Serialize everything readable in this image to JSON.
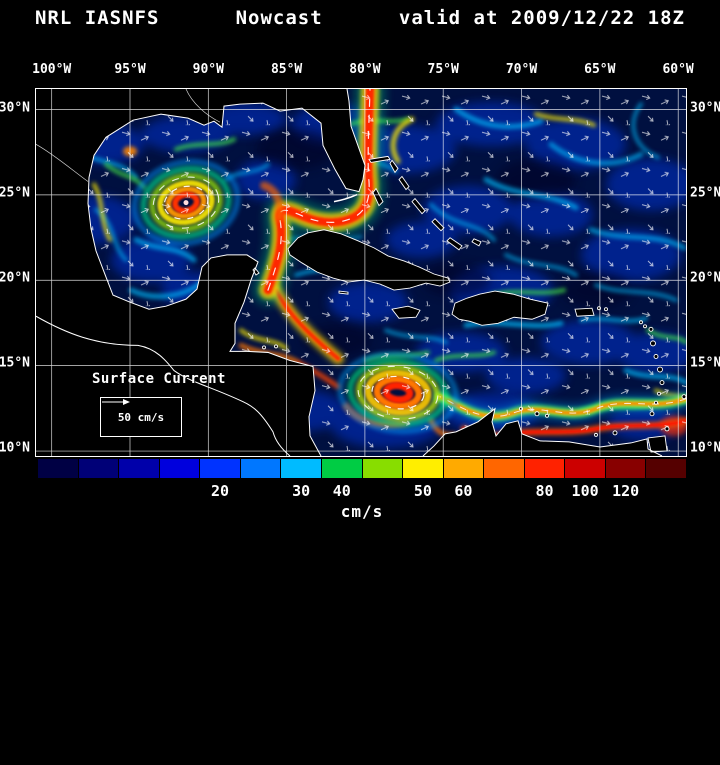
{
  "header": {
    "product": "NRL IASNFS",
    "mode": "Nowcast",
    "valid": "valid at 2009/12/22 18Z"
  },
  "map": {
    "lon_labels": [
      "100°W",
      "95°W",
      "90°W",
      "85°W",
      "80°W",
      "75°W",
      "70°W",
      "65°W",
      "60°W"
    ],
    "lat_labels_left": [
      "30°N",
      "25°N",
      "20°N",
      "15°N",
      "10°N"
    ],
    "lat_labels_right": [
      "30°N",
      "25°N",
      "20°N",
      "15°N",
      "10°N"
    ],
    "overlay": {
      "title": "Surface Current",
      "scale_label": "50 cm/s"
    }
  },
  "colorbar": {
    "segments": [
      {
        "color": "#000044",
        "label": ""
      },
      {
        "color": "#000077",
        "label": ""
      },
      {
        "color": "#0000aa",
        "label": ""
      },
      {
        "color": "#0000dd",
        "label": ""
      },
      {
        "color": "#0033ff",
        "label": "20"
      },
      {
        "color": "#0077ff",
        "label": ""
      },
      {
        "color": "#00bbff",
        "label": "30"
      },
      {
        "color": "#00cc44",
        "label": "40"
      },
      {
        "color": "#88dd00",
        "label": ""
      },
      {
        "color": "#ffee00",
        "label": "50"
      },
      {
        "color": "#ffaa00",
        "label": "60"
      },
      {
        "color": "#ff6600",
        "label": ""
      },
      {
        "color": "#ff2200",
        "label": "80"
      },
      {
        "color": "#cc0000",
        "label": "100"
      },
      {
        "color": "#880000",
        "label": "120"
      },
      {
        "color": "#550000",
        "label": ""
      }
    ],
    "unit": "cm/s"
  }
}
